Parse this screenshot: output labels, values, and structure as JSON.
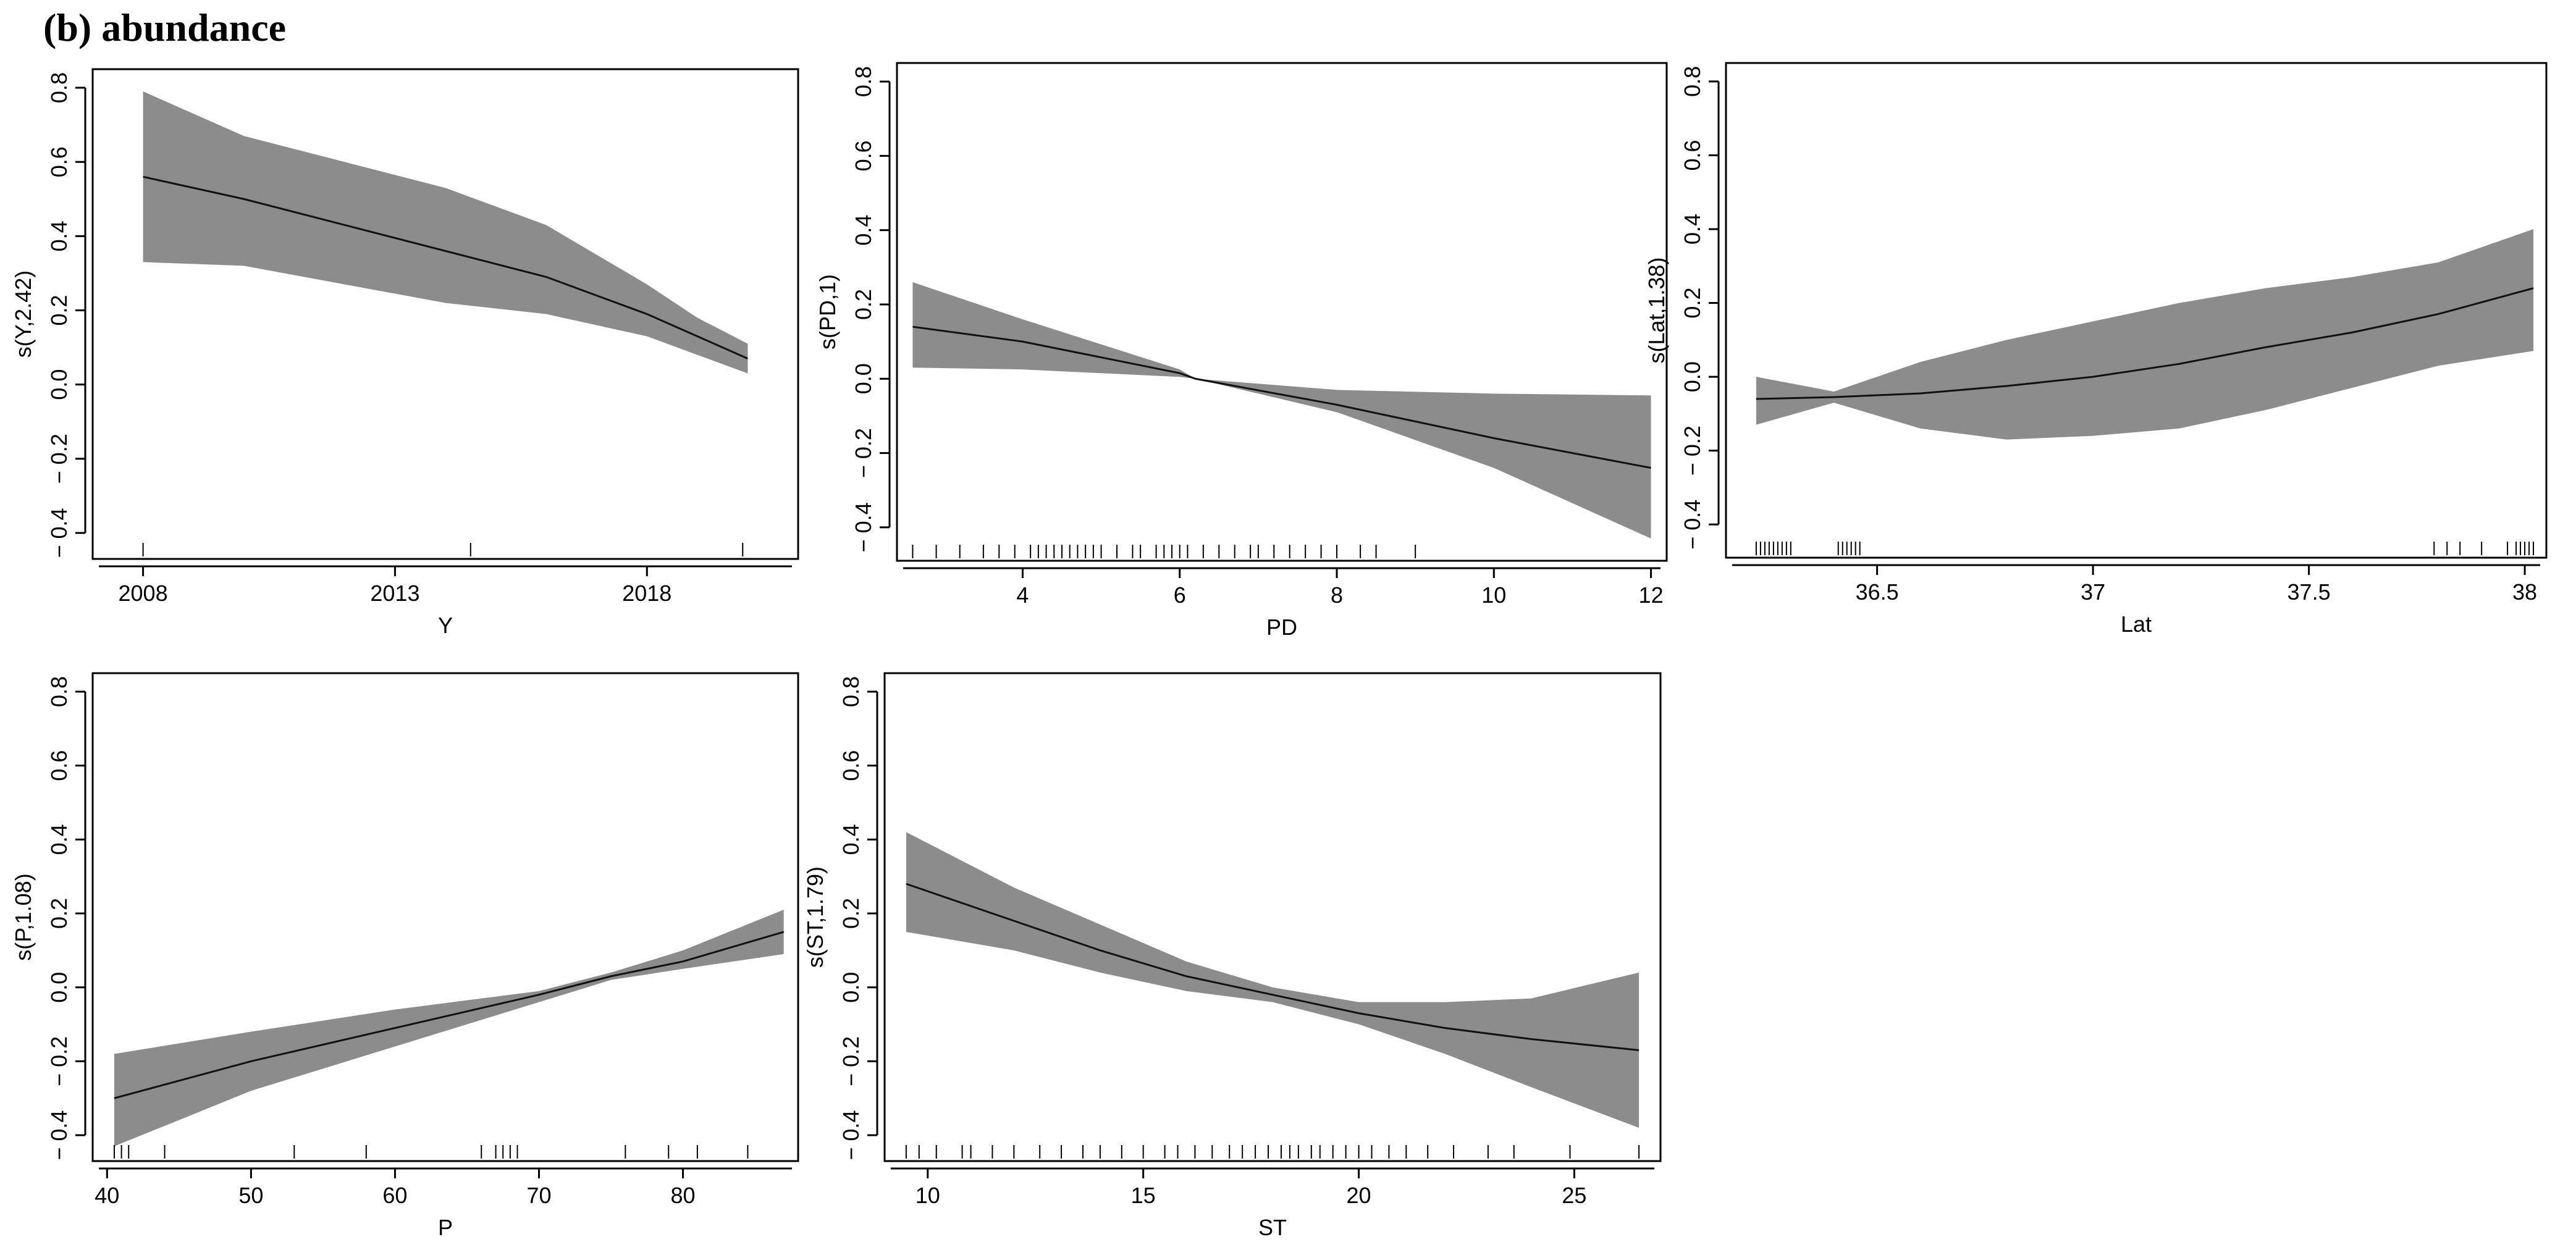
{
  "figure_title": "(b) abundance",
  "style": {
    "band_color": "#8c8c8c",
    "line_color": "#111111",
    "background": "#ffffff"
  },
  "chart_data": [
    {
      "type": "line",
      "xlabel": "Y",
      "ylabel": "s(Y,2.42)",
      "xlim": [
        2007,
        2021
      ],
      "ylim": [
        -0.47,
        0.85
      ],
      "xticks": [
        2008,
        2013,
        2018
      ],
      "yticks": [
        -0.4,
        -0.2,
        0.0,
        0.2,
        0.4,
        0.6,
        0.8
      ],
      "series": [
        {
          "x": [
            2008,
            2010,
            2012,
            2014,
            2016,
            2018,
            2019,
            2020
          ],
          "fit": [
            0.56,
            0.5,
            0.43,
            0.36,
            0.29,
            0.19,
            0.13,
            0.07
          ],
          "lower": [
            0.33,
            0.32,
            0.27,
            0.22,
            0.19,
            0.13,
            0.08,
            0.03
          ],
          "upper": [
            0.79,
            0.67,
            0.6,
            0.53,
            0.43,
            0.27,
            0.18,
            0.11
          ]
        }
      ],
      "rug": [
        2008,
        2014.5,
        2019.9
      ]
    },
    {
      "type": "line",
      "xlabel": "PD",
      "ylabel": "s(PD,1)",
      "xlim": [
        2.4,
        12.2
      ],
      "ylim": [
        -0.49,
        0.85
      ],
      "xticks": [
        4,
        6,
        8,
        10,
        12
      ],
      "yticks": [
        -0.4,
        -0.2,
        0.0,
        0.2,
        0.4,
        0.6,
        0.8
      ],
      "series": [
        {
          "x": [
            2.6,
            4,
            6,
            6.2,
            8,
            10,
            12
          ],
          "fit": [
            0.14,
            0.1,
            0.015,
            0.0,
            -0.07,
            -0.16,
            -0.24
          ],
          "lower": [
            0.03,
            0.025,
            0.005,
            0.0,
            -0.09,
            -0.24,
            -0.43
          ],
          "upper": [
            0.26,
            0.16,
            0.025,
            0.0,
            -0.03,
            -0.04,
            -0.045
          ]
        }
      ],
      "rug": [
        2.6,
        2.9,
        3.2,
        3.5,
        3.7,
        3.9,
        4.1,
        4.2,
        4.3,
        4.4,
        4.5,
        4.6,
        4.7,
        4.8,
        4.9,
        5.0,
        5.2,
        5.4,
        5.5,
        5.7,
        5.8,
        5.9,
        6.0,
        6.1,
        6.3,
        6.5,
        6.7,
        6.9,
        7.0,
        7.2,
        7.4,
        7.6,
        7.8,
        8.0,
        8.3,
        8.5,
        9.0
      ]
    },
    {
      "type": "line",
      "xlabel": "Lat",
      "ylabel": "s(Lat,1.38)",
      "xlim": [
        36.15,
        38.05
      ],
      "ylim": [
        -0.49,
        0.85
      ],
      "xticks": [
        36.5,
        37.0,
        37.5,
        38.0
      ],
      "yticks": [
        -0.4,
        -0.2,
        0.0,
        0.2,
        0.4,
        0.6,
        0.8
      ],
      "series": [
        {
          "x": [
            36.22,
            36.4,
            36.6,
            36.8,
            37.0,
            37.2,
            37.4,
            37.6,
            37.8,
            38.02
          ],
          "fit": [
            -0.06,
            -0.055,
            -0.045,
            -0.025,
            0.0,
            0.035,
            0.08,
            0.12,
            0.17,
            0.24
          ],
          "lower": [
            -0.13,
            -0.07,
            -0.14,
            -0.17,
            -0.16,
            -0.14,
            -0.09,
            -0.03,
            0.03,
            0.07
          ],
          "upper": [
            0.0,
            -0.04,
            0.04,
            0.1,
            0.15,
            0.2,
            0.24,
            0.27,
            0.31,
            0.4
          ]
        }
      ],
      "rug": [
        36.22,
        36.23,
        36.24,
        36.25,
        36.26,
        36.27,
        36.28,
        36.29,
        36.3,
        36.41,
        36.42,
        36.43,
        36.44,
        36.45,
        36.46,
        37.79,
        37.82,
        37.85,
        37.9,
        37.96,
        37.98,
        37.99,
        38.0,
        38.01,
        38.02
      ]
    },
    {
      "type": "line",
      "xlabel": "P",
      "ylabel": "s(P,1.08)",
      "xlim": [
        39,
        88
      ],
      "ylim": [
        -0.47,
        0.85
      ],
      "xticks": [
        40,
        50,
        60,
        70,
        80
      ],
      "yticks": [
        -0.4,
        -0.2,
        0.0,
        0.2,
        0.4,
        0.6,
        0.8
      ],
      "series": [
        {
          "x": [
            40.5,
            50,
            60,
            70,
            75,
            80,
            87
          ],
          "fit": [
            -0.3,
            -0.2,
            -0.11,
            -0.02,
            0.03,
            0.07,
            0.15
          ],
          "lower": [
            -0.43,
            -0.28,
            -0.16,
            -0.04,
            0.02,
            0.05,
            0.09
          ],
          "upper": [
            -0.18,
            -0.12,
            -0.06,
            -0.01,
            0.04,
            0.1,
            0.21
          ]
        }
      ],
      "rug": [
        40.5,
        41.0,
        41.5,
        44.0,
        53.0,
        58.0,
        66.0,
        67.0,
        67.5,
        68.0,
        68.5,
        76.0,
        79.0,
        81.0,
        84.5
      ]
    },
    {
      "type": "line",
      "xlabel": "ST",
      "ylabel": "s(ST,1.79)",
      "xlim": [
        9,
        27
      ],
      "ylim": [
        -0.47,
        0.85
      ],
      "xticks": [
        10,
        15,
        20,
        25
      ],
      "yticks": [
        -0.4,
        -0.2,
        0.0,
        0.2,
        0.4,
        0.6,
        0.8
      ],
      "series": [
        {
          "x": [
            9.5,
            12,
            14,
            16,
            18,
            20,
            22,
            24,
            26.5
          ],
          "fit": [
            0.28,
            0.18,
            0.1,
            0.03,
            -0.02,
            -0.07,
            -0.11,
            -0.14,
            -0.17
          ],
          "lower": [
            0.15,
            0.1,
            0.04,
            -0.01,
            -0.04,
            -0.1,
            -0.18,
            -0.27,
            -0.38
          ],
          "upper": [
            0.42,
            0.27,
            0.17,
            0.07,
            0.0,
            -0.04,
            -0.04,
            -0.03,
            0.04
          ]
        }
      ],
      "rug": [
        9.5,
        9.8,
        10.2,
        10.8,
        11.0,
        11.5,
        12.0,
        12.6,
        13.1,
        13.6,
        14.0,
        14.5,
        15.0,
        15.5,
        15.8,
        16.2,
        16.6,
        17.0,
        17.3,
        17.6,
        17.9,
        18.2,
        18.4,
        18.6,
        18.9,
        19.1,
        19.4,
        19.7,
        20.0,
        20.3,
        20.7,
        21.1,
        21.6,
        22.2,
        23.0,
        23.6,
        24.9,
        26.5
      ]
    }
  ]
}
